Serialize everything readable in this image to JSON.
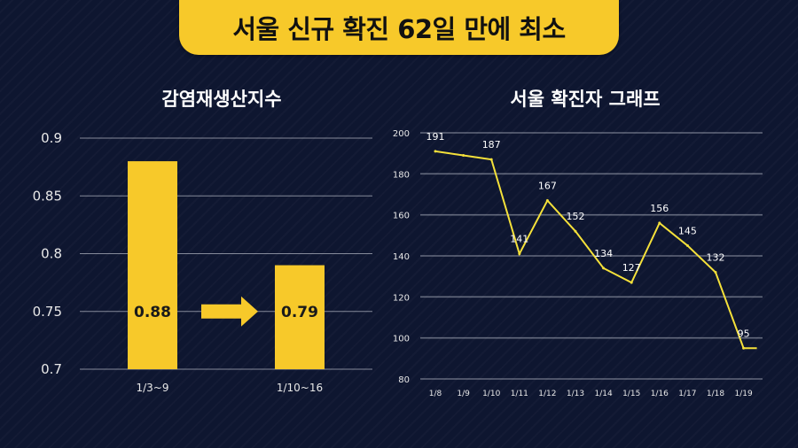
{
  "headline": "서울 신규 확진 62일 만에 최소",
  "colors": {
    "accent": "#f7c92a",
    "line": "#f5e13a",
    "background": "#0e1630",
    "grid": "#b8bcc8"
  },
  "chart_data": [
    {
      "type": "bar",
      "title": "감염재생산지수",
      "categories": [
        "1/3~9",
        "1/10~16"
      ],
      "values": [
        0.88,
        0.79
      ],
      "data_labels": [
        "0.88",
        "0.79"
      ],
      "ylim": [
        0.7,
        0.9
      ],
      "yticks": [
        "0.7",
        "0.75",
        "0.8",
        "0.85",
        "0.9"
      ],
      "annotation": "arrow-right-icon",
      "grid": true
    },
    {
      "type": "line",
      "title": "서울 확진자 그래프",
      "categories": [
        "1/8",
        "1/9",
        "1/10",
        "1/11",
        "1/12",
        "1/13",
        "1/14",
        "1/15",
        "1/16",
        "1/17",
        "1/18",
        "1/19"
      ],
      "values": [
        191,
        189,
        187,
        141,
        167,
        152,
        134,
        127,
        156,
        145,
        132,
        95
      ],
      "data_labels": [
        "191",
        "",
        "187",
        "141",
        "167",
        "152",
        "134",
        "127",
        "156",
        "145",
        "132",
        "95"
      ],
      "ylim": [
        80,
        200
      ],
      "yticks": [
        "80",
        "100",
        "120",
        "140",
        "160",
        "180",
        "200"
      ],
      "grid": true
    }
  ]
}
